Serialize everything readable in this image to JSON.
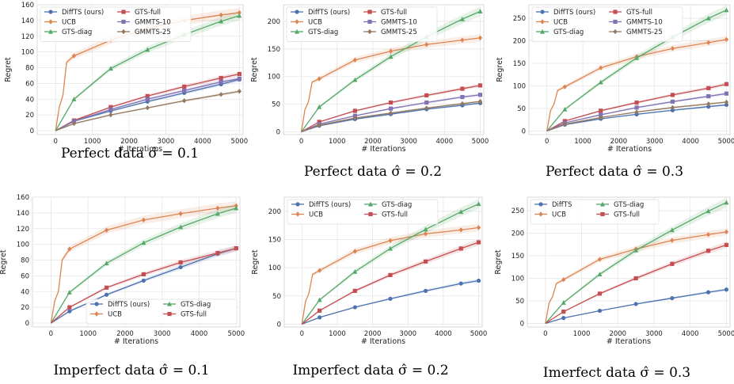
{
  "colors": {
    "DiffTS": "#4c72b0",
    "UCB": "#dd8452",
    "GTS-diag": "#55a868",
    "GTS-full": "#c44e52",
    "GMMTS-10": "#8172b3",
    "GMMTS-25": "#937860",
    "grid": "#e6e6e6",
    "axis": "#d0d0d0"
  },
  "chart_data": [
    {
      "type": "line",
      "caption": "Perfect data σ̂ = 0.1",
      "xlabel": "# Iterations",
      "ylabel": "Regret",
      "xlim": [
        -500,
        5100
      ],
      "ylim": [
        -5,
        160
      ],
      "xticks": [
        "0",
        "1000",
        "2000",
        "3000",
        "4000",
        "5000"
      ],
      "yticks": [
        "0",
        "20",
        "40",
        "60",
        "80",
        "100",
        "120",
        "140",
        "160"
      ],
      "legend": {
        "placement": "top-left",
        "cols": 2
      },
      "series": [
        {
          "name": "DiffTS (ours)",
          "key": "DiffTS",
          "marker": "circle",
          "x": [
            0,
            500,
            1500,
            2500,
            3500,
            4500,
            5000
          ],
          "y": [
            0,
            12,
            25,
            37,
            48,
            59,
            65
          ]
        },
        {
          "name": "UCB",
          "key": "UCB",
          "marker": "diamond",
          "x": [
            0,
            100,
            200,
            300,
            500,
            1500,
            2500,
            3500,
            4500,
            5000
          ],
          "y": [
            0,
            30,
            45,
            87,
            95,
            115,
            130,
            140,
            147,
            150
          ]
        },
        {
          "name": "GTS-diag",
          "key": "GTS-diag",
          "marker": "triangle",
          "x": [
            0,
            500,
            1500,
            2500,
            3500,
            4500,
            5000
          ],
          "y": [
            0,
            40,
            79,
            103,
            122,
            139,
            146
          ]
        },
        {
          "name": "GTS-full",
          "key": "GTS-full",
          "marker": "square",
          "x": [
            0,
            500,
            1500,
            2500,
            3500,
            4500,
            5000
          ],
          "y": [
            0,
            13,
            30,
            44,
            56,
            67,
            72
          ]
        },
        {
          "name": "GMMTS-10",
          "key": "GMMTS-10",
          "marker": "square",
          "x": [
            0,
            500,
            1500,
            2500,
            3500,
            4500,
            5000
          ],
          "y": [
            0,
            12,
            27,
            40,
            51,
            62,
            66
          ]
        },
        {
          "name": "GMMTS-25",
          "key": "GMMTS-25",
          "marker": "diamond",
          "x": [
            0,
            500,
            1500,
            2500,
            3500,
            4500,
            5000
          ],
          "y": [
            0,
            9,
            20,
            29,
            38,
            46,
            50
          ]
        }
      ]
    },
    {
      "type": "line",
      "caption": "Perfect data σ̂ = 0.2",
      "xlabel": "# Iterations",
      "ylabel": "Regret",
      "xlim": [
        -500,
        5100
      ],
      "ylim": [
        -5,
        230
      ],
      "xticks": [
        "0",
        "1000",
        "2000",
        "3000",
        "4000",
        "5000"
      ],
      "yticks": [
        "0",
        "50",
        "100",
        "150",
        "200"
      ],
      "legend": {
        "placement": "top-left",
        "cols": 2
      },
      "series": [
        {
          "name": "DiffTS (ours)",
          "key": "DiffTS",
          "marker": "circle",
          "x": [
            0,
            500,
            1500,
            2500,
            3500,
            4500,
            5000
          ],
          "y": [
            0,
            11,
            23,
            32,
            41,
            48,
            52
          ]
        },
        {
          "name": "UCB",
          "key": "UCB",
          "marker": "diamond",
          "x": [
            0,
            100,
            200,
            300,
            500,
            1500,
            2500,
            3500,
            4500,
            5000
          ],
          "y": [
            0,
            40,
            55,
            90,
            96,
            130,
            146,
            158,
            166,
            170
          ]
        },
        {
          "name": "GTS-diag",
          "key": "GTS-diag",
          "marker": "triangle",
          "x": [
            0,
            500,
            1500,
            2500,
            3500,
            4500,
            5000
          ],
          "y": [
            0,
            45,
            94,
            136,
            172,
            204,
            218
          ]
        },
        {
          "name": "GTS-full",
          "key": "GTS-full",
          "marker": "square",
          "x": [
            0,
            500,
            1500,
            2500,
            3500,
            4500,
            5000
          ],
          "y": [
            0,
            18,
            38,
            53,
            66,
            78,
            84
          ]
        },
        {
          "name": "GMMTS-10",
          "key": "GMMTS-10",
          "marker": "square",
          "x": [
            0,
            500,
            1500,
            2500,
            3500,
            4500,
            5000
          ],
          "y": [
            0,
            14,
            29,
            42,
            53,
            63,
            67
          ]
        },
        {
          "name": "GMMTS-25",
          "key": "GMMTS-25",
          "marker": "diamond",
          "x": [
            0,
            500,
            1500,
            2500,
            3500,
            4500,
            5000
          ],
          "y": [
            0,
            12,
            25,
            34,
            43,
            51,
            55
          ]
        }
      ]
    },
    {
      "type": "line",
      "caption": "Perfect data σ̂ = 0.3",
      "xlabel": "# Iterations",
      "ylabel": "Regret",
      "xlim": [
        -500,
        5100
      ],
      "ylim": [
        -8,
        280
      ],
      "xticks": [
        "0",
        "1000",
        "2000",
        "3000",
        "4000",
        "5000"
      ],
      "yticks": [
        "0",
        "50",
        "100",
        "150",
        "200",
        "250"
      ],
      "legend": {
        "placement": "top-left",
        "cols": 2
      },
      "series": [
        {
          "name": "DiffTS (ours)",
          "key": "DiffTS",
          "marker": "circle",
          "x": [
            0,
            500,
            1500,
            2500,
            3500,
            4500,
            5000
          ],
          "y": [
            0,
            14,
            27,
            37,
            46,
            54,
            58
          ]
        },
        {
          "name": "UCB",
          "key": "UCB",
          "marker": "diamond",
          "x": [
            0,
            100,
            200,
            300,
            500,
            1500,
            2500,
            3500,
            4500,
            5000
          ],
          "y": [
            0,
            45,
            60,
            90,
            98,
            140,
            165,
            183,
            196,
            203
          ]
        },
        {
          "name": "GTS-diag",
          "key": "GTS-diag",
          "marker": "triangle",
          "x": [
            0,
            500,
            1500,
            2500,
            3500,
            4500,
            5000
          ],
          "y": [
            0,
            48,
            108,
            162,
            208,
            250,
            268
          ]
        },
        {
          "name": "GTS-full",
          "key": "GTS-full",
          "marker": "square",
          "x": [
            0,
            500,
            1500,
            2500,
            3500,
            4500,
            5000
          ],
          "y": [
            0,
            22,
            45,
            63,
            80,
            95,
            104
          ]
        },
        {
          "name": "GMMTS-10",
          "key": "GMMTS-10",
          "marker": "square",
          "x": [
            0,
            500,
            1500,
            2500,
            3500,
            4500,
            5000
          ],
          "y": [
            0,
            18,
            36,
            52,
            65,
            77,
            83
          ]
        },
        {
          "name": "GMMTS-25",
          "key": "GMMTS-25",
          "marker": "diamond",
          "x": [
            0,
            500,
            1500,
            2500,
            3500,
            4500,
            5000
          ],
          "y": [
            0,
            15,
            30,
            42,
            52,
            60,
            64
          ]
        }
      ]
    },
    {
      "type": "line",
      "caption": "Imperfect data σ̂ = 0.1",
      "xlabel": "# Iterations",
      "ylabel": "Regret",
      "xlim": [
        -500,
        5100
      ],
      "ylim": [
        -5,
        160
      ],
      "xticks": [
        "0",
        "1000",
        "2000",
        "3000",
        "4000",
        "5000"
      ],
      "yticks": [
        "0",
        "20",
        "40",
        "60",
        "80",
        "100",
        "120",
        "140",
        "160"
      ],
      "legend": {
        "placement": "bottom-right",
        "cols": 2
      },
      "series": [
        {
          "name": "DiffTS (ours)",
          "key": "DiffTS",
          "marker": "circle",
          "x": [
            0,
            500,
            1500,
            2500,
            3500,
            4500,
            5000
          ],
          "y": [
            0,
            15,
            36,
            54,
            71,
            88,
            95
          ]
        },
        {
          "name": "UCB",
          "key": "UCB",
          "marker": "diamond",
          "x": [
            0,
            100,
            200,
            300,
            500,
            1500,
            2500,
            3500,
            4500,
            5000
          ],
          "y": [
            0,
            28,
            40,
            80,
            94,
            118,
            131,
            139,
            146,
            149
          ]
        },
        {
          "name": "GTS-diag",
          "key": "GTS-diag",
          "marker": "triangle",
          "x": [
            0,
            500,
            1500,
            2500,
            3500,
            4500,
            5000
          ],
          "y": [
            0,
            39,
            76,
            102,
            122,
            139,
            146
          ]
        },
        {
          "name": "GTS-full",
          "key": "GTS-full",
          "marker": "square",
          "x": [
            0,
            500,
            1500,
            2500,
            3500,
            4500,
            5000
          ],
          "y": [
            0,
            20,
            45,
            62,
            77,
            89,
            95
          ]
        }
      ]
    },
    {
      "type": "line",
      "caption": "Imperfect data σ̂ = 0.2",
      "xlabel": "# Iterations",
      "ylabel": "Regret",
      "xlim": [
        -500,
        5100
      ],
      "ylim": [
        -5,
        225
      ],
      "xticks": [
        "0",
        "1000",
        "2000",
        "3000",
        "4000",
        "5000"
      ],
      "yticks": [
        "0",
        "50",
        "100",
        "150",
        "200"
      ],
      "legend": {
        "placement": "top-left",
        "cols": 2
      },
      "series": [
        {
          "name": "DiffTS (ours)",
          "key": "DiffTS",
          "marker": "circle",
          "x": [
            0,
            500,
            1500,
            2500,
            3500,
            4500,
            5000
          ],
          "y": [
            0,
            12,
            30,
            45,
            59,
            72,
            77
          ]
        },
        {
          "name": "UCB",
          "key": "UCB",
          "marker": "diamond",
          "x": [
            0,
            100,
            200,
            300,
            500,
            1500,
            2500,
            3500,
            4500,
            5000
          ],
          "y": [
            0,
            40,
            55,
            88,
            95,
            129,
            148,
            160,
            167,
            171
          ]
        },
        {
          "name": "GTS-diag",
          "key": "GTS-diag",
          "marker": "triangle",
          "x": [
            0,
            500,
            1500,
            2500,
            3500,
            4500,
            5000
          ],
          "y": [
            0,
            43,
            93,
            134,
            168,
            199,
            213
          ]
        },
        {
          "name": "GTS-full",
          "key": "GTS-full",
          "marker": "square",
          "x": [
            0,
            500,
            1500,
            2500,
            3500,
            4500,
            5000
          ],
          "y": [
            0,
            24,
            59,
            87,
            111,
            134,
            145
          ]
        }
      ]
    },
    {
      "type": "line",
      "caption": "Imerfect data σ̂ = 0.3",
      "xlabel": "# Iterations",
      "ylabel": "Regret",
      "xlim": [
        -500,
        5100
      ],
      "ylim": [
        -8,
        280
      ],
      "xticks": [
        "0",
        "1000",
        "2000",
        "3000",
        "4000",
        "5000"
      ],
      "yticks": [
        "0",
        "50",
        "100",
        "150",
        "200",
        "250"
      ],
      "legend": {
        "placement": "top-left",
        "cols": 2
      },
      "series": [
        {
          "name": "DiffTS",
          "key": "DiffTS",
          "marker": "circle",
          "x": [
            0,
            500,
            1500,
            2500,
            3500,
            4500,
            5000
          ],
          "y": [
            0,
            12,
            28,
            43,
            56,
            69,
            75
          ]
        },
        {
          "name": "UCB",
          "key": "UCB",
          "marker": "diamond",
          "x": [
            0,
            100,
            200,
            300,
            500,
            1500,
            2500,
            3500,
            4500,
            5000
          ],
          "y": [
            0,
            45,
            60,
            88,
            97,
            142,
            165,
            184,
            197,
            203
          ]
        },
        {
          "name": "GTS-diag",
          "key": "GTS-diag",
          "marker": "triangle",
          "x": [
            0,
            500,
            1500,
            2500,
            3500,
            4500,
            5000
          ],
          "y": [
            0,
            46,
            109,
            162,
            207,
            249,
            268
          ]
        },
        {
          "name": "GTS-full",
          "key": "GTS-full",
          "marker": "square",
          "x": [
            0,
            500,
            1500,
            2500,
            3500,
            4500,
            5000
          ],
          "y": [
            0,
            26,
            66,
            100,
            132,
            161,
            174
          ]
        }
      ]
    }
  ]
}
